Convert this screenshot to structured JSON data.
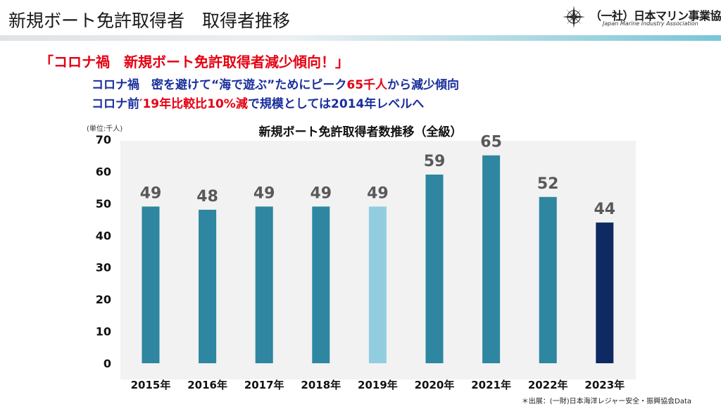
{
  "header": {
    "title": "新規ボート免許取得者　取得者推移",
    "org_name": "（一社）日本マリン事業協会",
    "org_english": "Japan Marine Industry Association"
  },
  "headline": "「コロナ禍　新規ボート免許取得者減少傾向！」",
  "subline1": {
    "pre": "コロナ禍　密を避けて",
    "quote": "“海で遊ぶ”",
    "mid": "ためにピーク",
    "peak": "65千人",
    "post": "から減少傾向"
  },
  "subline2": {
    "pre": "コロナ前",
    "highlight": "′19年比較比10%減",
    "post": "で規模としては2014年レベルへ"
  },
  "chart_data": {
    "type": "bar",
    "title": "新規ボート免許取得者数推移（全級）",
    "unit_label": "(単位:千人)",
    "categories": [
      "2015年",
      "2016年",
      "2017年",
      "2018年",
      "2019年",
      "2020年",
      "2021年",
      "2022年",
      "2023年"
    ],
    "values": [
      49,
      48,
      49,
      49,
      49,
      59,
      65,
      52,
      44
    ],
    "data_labels": [
      "49",
      "48",
      "49",
      "49",
      "49",
      "59",
      "65",
      "52",
      "44"
    ],
    "bar_colors": [
      "#2e86a0",
      "#2e86a0",
      "#2e86a0",
      "#2e86a0",
      "#92cddf",
      "#2e86a0",
      "#2e86a0",
      "#2e86a0",
      "#0f2a63"
    ],
    "ylim": [
      0,
      70
    ],
    "yticks": [
      0,
      10,
      20,
      30,
      40,
      50,
      60,
      70
    ],
    "grid": false,
    "background": "#f2f2f2"
  },
  "source": "＊出展：(一財)日本海洋レジャー安全・振興協会Data"
}
